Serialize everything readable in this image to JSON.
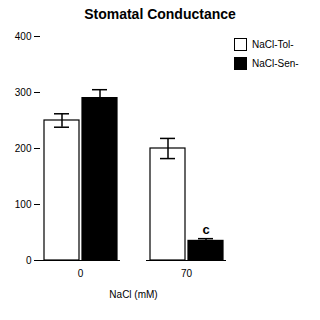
{
  "chart_data": {
    "type": "bar",
    "title": "Stomatal Conductance",
    "xlabel": "NaCl (mM)",
    "categories": [
      "0",
      "70"
    ],
    "series": [
      {
        "name": "NaCl-Tol-",
        "color": "white",
        "values": [
          250,
          200
        ],
        "errors": [
          12,
          18
        ]
      },
      {
        "name": "NaCl-Sen-",
        "color": "black",
        "values": [
          290,
          35
        ],
        "errors": [
          15,
          4
        ]
      }
    ],
    "ylim": [
      0,
      400
    ],
    "yticks": [
      0,
      100,
      200,
      300,
      400
    ],
    "legend": "right",
    "annotations": [
      {
        "text": "c",
        "x": "70",
        "series": "NaCl-Sen-"
      }
    ]
  }
}
